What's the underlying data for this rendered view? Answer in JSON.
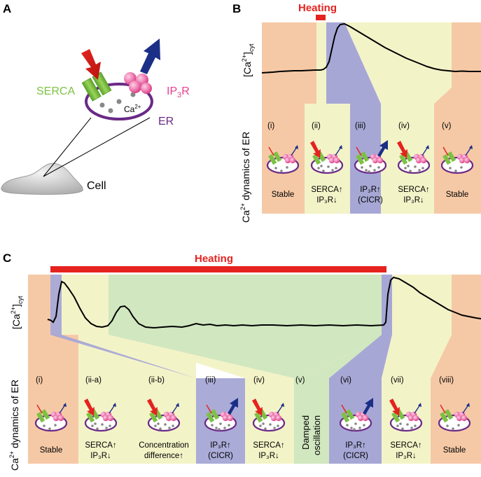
{
  "colors": {
    "heating": "#e4231f",
    "stable": "#f6c9a6",
    "serca_phase": "#f3f3c8",
    "cicr": "#a7a7d6",
    "damped": "#d1e7c0",
    "er_membrane": "#6a2a86",
    "serca": "#7cc242",
    "ip3r": "#e93e8e",
    "trace": "#000000"
  },
  "panel_a": {
    "letter": "A",
    "serca_label": "SERCA",
    "ip3r_label": "IP",
    "ip3r_sub": "3",
    "ip3r_tail": "R",
    "ca_label": "Ca",
    "ca_sup": "2+",
    "er_label": "ER",
    "cell_label": "Cell"
  },
  "panel_b": {
    "letter": "B",
    "heating_label": "Heating",
    "y_label": "[Ca",
    "y_sup": "2+",
    "y_tail": "]",
    "y_sub": "cyt",
    "side_label": "Ca",
    "side_sup": "2+",
    "side_tail": " dynamics of ER",
    "phases": [
      {
        "num": "(i)",
        "line1": "Stable",
        "line2": "",
        "type": "stable"
      },
      {
        "num": "(ii)",
        "line1": "SERCA↑",
        "line2": "IP₃R↓",
        "type": "serca"
      },
      {
        "num": "(iii)",
        "line1": "IP₃R↑",
        "line2": "(CICR)",
        "type": "cicr"
      },
      {
        "num": "(iv)",
        "line1": "SERCA↑",
        "line2": "IP₃R↓",
        "type": "serca"
      },
      {
        "num": "(v)",
        "line1": "Stable",
        "line2": "",
        "type": "stable"
      }
    ]
  },
  "panel_c": {
    "letter": "C",
    "heating_label": "Heating",
    "y_label": "[Ca",
    "y_sup": "2+",
    "y_tail": "]",
    "y_sub": "cyt",
    "side_label": "Ca",
    "side_sup": "2+",
    "side_tail": " dynamics of ER",
    "damped_line1": "Damped",
    "damped_line2": "oscillation",
    "phases": [
      {
        "num": "(i)",
        "line1": "Stable",
        "line2": "",
        "type": "stable"
      },
      {
        "num": "(ii-a)",
        "line1": "SERCA↑",
        "line2": "IP₃R↓",
        "type": "serca"
      },
      {
        "num": "(ii-b)",
        "line1": "Concentration",
        "line2": "difference↑",
        "type": "serca"
      },
      {
        "num": "(iii)",
        "line1": "IP₃R↑",
        "line2": "(CICR)",
        "type": "cicr"
      },
      {
        "num": "(iv)",
        "line1": "SERCA↑",
        "line2": "IP₃R↓",
        "type": "serca"
      },
      {
        "num": "(v)",
        "line1": "",
        "line2": "",
        "type": "damped"
      },
      {
        "num": "(vi)",
        "line1": "IP₃R↑",
        "line2": "(CICR)",
        "type": "cicr"
      },
      {
        "num": "(vii)",
        "line1": "SERCA↑",
        "line2": "IP₃R↓",
        "type": "serca"
      },
      {
        "num": "(viii)",
        "line1": "Stable",
        "line2": "",
        "type": "stable"
      }
    ]
  }
}
